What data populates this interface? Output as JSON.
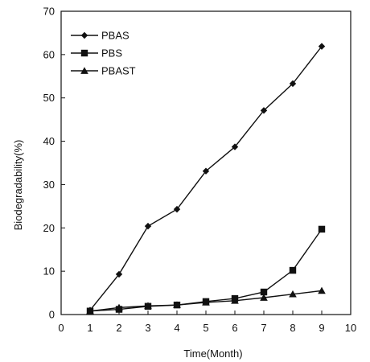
{
  "chart_data": {
    "type": "line",
    "title": "",
    "xlabel": "Time(Month)",
    "ylabel": "Biodegradability(%)",
    "xlim": [
      0,
      10
    ],
    "ylim": [
      0,
      70
    ],
    "xticks": [
      0,
      1,
      2,
      3,
      4,
      5,
      6,
      7,
      8,
      9,
      10
    ],
    "yticks": [
      0,
      10,
      20,
      30,
      40,
      50,
      60,
      70
    ],
    "grid": false,
    "legend_position": "top-left",
    "series": [
      {
        "name": "PBAS",
        "marker": "diamond",
        "x": [
          1,
          2,
          3,
          4,
          5,
          6,
          7,
          8,
          9
        ],
        "values": [
          1.0,
          9.3,
          20.4,
          24.3,
          33.1,
          38.7,
          47.1,
          53.3,
          61.9
        ]
      },
      {
        "name": "PBS",
        "marker": "square",
        "x": [
          1,
          2,
          3,
          4,
          5,
          6,
          7,
          8,
          9
        ],
        "values": [
          0.8,
          1.2,
          1.9,
          2.2,
          3.0,
          3.7,
          5.2,
          10.2,
          19.7
        ]
      },
      {
        "name": "PBAST",
        "marker": "triangle",
        "x": [
          1,
          2,
          3,
          4,
          5,
          6,
          7,
          8,
          9
        ],
        "values": [
          0.8,
          1.6,
          2.0,
          2.2,
          2.8,
          3.2,
          3.9,
          4.7,
          5.5
        ]
      }
    ]
  }
}
